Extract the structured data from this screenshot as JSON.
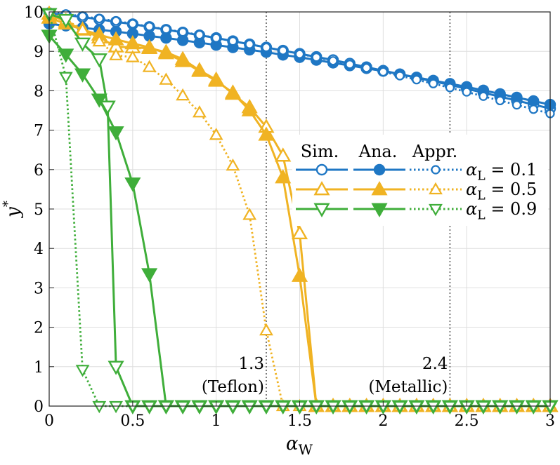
{
  "chart_data": {
    "type": "line",
    "xlabel": "α_W",
    "ylabel": "y*",
    "xlim": [
      0,
      3
    ],
    "ylim": [
      0,
      10
    ],
    "x_ticks": [
      "0",
      "0.5",
      "1",
      "1.5",
      "2",
      "2.5",
      "3"
    ],
    "y_ticks": [
      "0",
      "1",
      "2",
      "3",
      "4",
      "5",
      "6",
      "7",
      "8",
      "9",
      "10"
    ],
    "grid": true,
    "legend": {
      "placement": "center-right",
      "headers": [
        "Sim.",
        "Ana.",
        "Appr."
      ],
      "rows": [
        "α_L = 0.1",
        "α_L = 0.5",
        "α_L = 0.9"
      ]
    },
    "reference_lines": [
      {
        "x": 1.3,
        "label_value": "1.3",
        "label_name": "(Teflon)"
      },
      {
        "x": 2.4,
        "label_value": "2.4",
        "label_name": "(Metallic)"
      }
    ],
    "series": [
      {
        "group": "α_L = 0.1",
        "kind": "Sim.",
        "color": "#1f77c4",
        "marker": "circle-open",
        "line": "solid",
        "x": [
          0,
          0.1,
          0.2,
          0.3,
          0.4,
          0.5,
          0.6,
          0.7,
          0.8,
          0.9,
          1.0,
          1.1,
          1.2,
          1.3,
          1.4,
          1.5,
          1.6,
          1.7,
          1.8,
          1.9,
          2.0,
          2.1,
          2.2,
          2.3,
          2.4,
          2.5,
          2.6,
          2.7,
          2.8,
          2.9,
          3.0
        ],
        "y": [
          9.97,
          9.92,
          9.87,
          9.81,
          9.75,
          9.69,
          9.62,
          9.55,
          9.48,
          9.41,
          9.34,
          9.26,
          9.18,
          9.1,
          9.02,
          8.94,
          8.86,
          8.78,
          8.69,
          8.6,
          8.51,
          8.42,
          8.33,
          8.24,
          8.15,
          8.05,
          7.95,
          7.85,
          7.75,
          7.65,
          7.55
        ]
      },
      {
        "group": "α_L = 0.1",
        "kind": "Ana.",
        "color": "#1f77c4",
        "marker": "circle-filled",
        "line": "solid",
        "x": [
          0,
          0.1,
          0.2,
          0.3,
          0.4,
          0.5,
          0.6,
          0.7,
          0.8,
          0.9,
          1.0,
          1.1,
          1.2,
          1.3,
          1.4,
          1.5,
          1.6,
          1.7,
          1.8,
          1.9,
          2.0,
          2.1,
          2.2,
          2.3,
          2.4,
          2.5,
          2.6,
          2.7,
          2.8,
          2.9,
          3.0
        ],
        "y": [
          9.7,
          9.65,
          9.6,
          9.55,
          9.5,
          9.45,
          9.39,
          9.34,
          9.28,
          9.22,
          9.16,
          9.1,
          9.04,
          8.98,
          8.91,
          8.85,
          8.78,
          8.71,
          8.64,
          8.57,
          8.5,
          8.42,
          8.34,
          8.26,
          8.18,
          8.1,
          8.01,
          7.92,
          7.83,
          7.74,
          7.65
        ]
      },
      {
        "group": "α_L = 0.1",
        "kind": "Appr.",
        "color": "#1f77c4",
        "marker": "circle-small",
        "line": "dotted",
        "x": [
          0,
          0.1,
          0.2,
          0.3,
          0.4,
          0.5,
          0.6,
          0.7,
          0.8,
          0.9,
          1.0,
          1.1,
          1.2,
          1.3,
          1.4,
          1.5,
          1.6,
          1.7,
          1.8,
          1.9,
          2.0,
          2.1,
          2.2,
          2.3,
          2.4,
          2.5,
          2.6,
          2.7,
          2.8,
          2.9,
          3.0
        ],
        "y": [
          10.0,
          9.95,
          9.89,
          9.83,
          9.77,
          9.7,
          9.63,
          9.56,
          9.49,
          9.42,
          9.34,
          9.26,
          9.18,
          9.1,
          9.02,
          8.93,
          8.85,
          8.76,
          8.67,
          8.58,
          8.48,
          8.38,
          8.28,
          8.18,
          8.08,
          7.97,
          7.86,
          7.75,
          7.64,
          7.53,
          7.42
        ]
      },
      {
        "group": "α_L = 0.5",
        "kind": "Sim.",
        "color": "#f0b323",
        "marker": "triangle-up-open",
        "line": "solid",
        "x": [
          0,
          0.1,
          0.2,
          0.3,
          0.4,
          0.5,
          0.6,
          0.7,
          0.8,
          0.9,
          1.0,
          1.1,
          1.2,
          1.3,
          1.4,
          1.5,
          1.6,
          1.7,
          1.8,
          1.9,
          2.0,
          2.1,
          2.2,
          2.3,
          2.4,
          2.5,
          2.6,
          2.7,
          2.8,
          2.9,
          3.0
        ],
        "y": [
          9.95,
          9.75,
          9.55,
          9.35,
          9.12,
          9.1,
          9.08,
          8.98,
          8.8,
          8.52,
          8.28,
          7.92,
          7.58,
          7.08,
          6.35,
          4.38,
          0,
          0,
          0,
          0,
          0,
          0,
          0,
          0,
          0,
          0,
          0,
          0,
          0,
          0,
          0
        ]
      },
      {
        "group": "α_L = 0.5",
        "kind": "Ana.",
        "color": "#f0b323",
        "marker": "triangle-up-filled",
        "line": "solid",
        "x": [
          0,
          0.1,
          0.2,
          0.3,
          0.4,
          0.5,
          0.6,
          0.7,
          0.8,
          0.9,
          1.0,
          1.1,
          1.2,
          1.3,
          1.4,
          1.5,
          1.6,
          1.7,
          1.8,
          1.9,
          2.0,
          2.1,
          2.2,
          2.3,
          2.4,
          2.5,
          2.6,
          2.7,
          2.8,
          2.9,
          3.0
        ],
        "y": [
          9.85,
          9.7,
          9.55,
          9.42,
          9.3,
          9.2,
          9.1,
          8.95,
          8.75,
          8.5,
          8.25,
          7.95,
          7.5,
          6.88,
          5.8,
          3.3,
          0,
          0,
          0,
          0,
          0,
          0,
          0,
          0,
          0,
          0,
          0,
          0,
          0,
          0,
          0
        ]
      },
      {
        "group": "α_L = 0.5",
        "kind": "Appr.",
        "color": "#f0b323",
        "marker": "triangle-up-small",
        "line": "dotted",
        "x": [
          0,
          0.1,
          0.2,
          0.3,
          0.4,
          0.5,
          0.6,
          0.7,
          0.8,
          0.9,
          1.0,
          1.1,
          1.2,
          1.3,
          1.4,
          1.5,
          1.6,
          1.7,
          1.8,
          1.9,
          2.0,
          2.1,
          2.2,
          2.3,
          2.4,
          2.5,
          2.6,
          2.7,
          2.8,
          2.9,
          3.0
        ],
        "y": [
          9.98,
          9.8,
          9.55,
          9.25,
          8.9,
          8.85,
          8.6,
          8.28,
          7.88,
          7.45,
          6.88,
          6.1,
          4.85,
          1.92,
          0,
          0,
          0,
          0,
          0,
          0,
          0,
          0,
          0,
          0,
          0,
          0,
          0,
          0,
          0,
          0,
          0
        ]
      },
      {
        "group": "α_L = 0.9",
        "kind": "Sim.",
        "color": "#3fae3a",
        "marker": "triangle-down-open",
        "line": "solid",
        "x": [
          0,
          0.1,
          0.2,
          0.3,
          0.35,
          0.4,
          0.5,
          0.6,
          0.7,
          0.8,
          0.9,
          1.0,
          1.1,
          1.2,
          1.3,
          1.4,
          1.5,
          1.6,
          1.7,
          1.8,
          1.9,
          2.0,
          2.1,
          2.2,
          2.3,
          2.4,
          2.5,
          2.6,
          2.7,
          2.8,
          2.9,
          3.0
        ],
        "y": [
          9.95,
          9.8,
          9.2,
          8.8,
          7.6,
          1.0,
          0,
          0,
          0,
          0,
          0,
          0,
          0,
          0,
          0,
          0,
          0,
          0,
          0,
          0,
          0,
          0,
          0,
          0,
          0,
          0,
          0,
          0,
          0,
          0,
          0,
          0
        ]
      },
      {
        "group": "α_L = 0.9",
        "kind": "Ana.",
        "color": "#3fae3a",
        "marker": "triangle-down-filled",
        "line": "solid",
        "x": [
          0,
          0.1,
          0.2,
          0.3,
          0.4,
          0.5,
          0.6,
          0.7,
          0.8,
          0.9,
          1.0,
          1.1,
          1.2,
          1.3,
          1.4,
          1.5,
          1.6,
          1.7,
          1.8,
          1.9,
          2.0,
          2.1,
          2.2,
          2.3,
          2.4,
          2.5,
          2.6,
          2.7,
          2.8,
          2.9,
          3.0
        ],
        "y": [
          9.4,
          8.92,
          8.42,
          7.78,
          6.95,
          5.65,
          3.35,
          0,
          0,
          0,
          0,
          0,
          0,
          0,
          0,
          0,
          0,
          0,
          0,
          0,
          0,
          0,
          0,
          0,
          0,
          0,
          0,
          0,
          0,
          0,
          0
        ]
      },
      {
        "group": "α_L = 0.9",
        "kind": "Appr.",
        "color": "#3fae3a",
        "marker": "triangle-down-small",
        "line": "dotted",
        "x": [
          0,
          0.1,
          0.2,
          0.3,
          0.4,
          0.5,
          0.6,
          0.7,
          0.8,
          0.9,
          1.0,
          1.1,
          1.2,
          1.3,
          1.4,
          1.5,
          1.6,
          1.7,
          1.8,
          1.9,
          2.0,
          2.1,
          2.2,
          2.3,
          2.4,
          2.5,
          2.6,
          2.7,
          2.8,
          2.9,
          3.0
        ],
        "y": [
          9.95,
          8.35,
          0.92,
          0,
          0,
          0,
          0,
          0,
          0,
          0,
          0,
          0,
          0,
          0,
          0,
          0,
          0,
          0,
          0,
          0,
          0,
          0,
          0,
          0,
          0,
          0,
          0,
          0,
          0,
          0,
          0
        ]
      }
    ]
  }
}
